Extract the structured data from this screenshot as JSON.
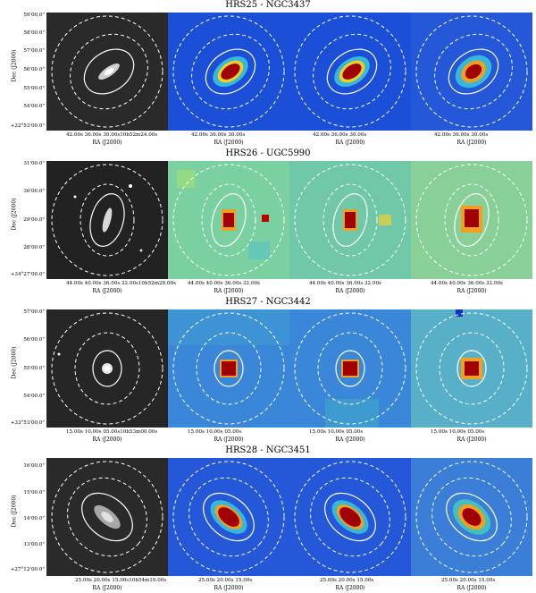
{
  "rows": [
    {
      "title": "HRS25 - NGC3437",
      "yticks": [
        "59'00.0\"",
        "58'00.0\"",
        "57'00.0\"",
        "56'00.0\"",
        "55'00.0\"",
        "54'00.0\"",
        "+22°53'00.0\""
      ],
      "ylabel": "Dec (J2000)",
      "xticks": [
        "42.00s    36.00s    30.00s10h52m24.00s",
        "42.00s    36.00s    30.00s",
        "42.00s    36.00s    30.00s",
        "42.00s    36.00s    30.00s"
      ],
      "xlabel": "RA (J2000)"
    },
    {
      "title": "HRS26 - UGC5990",
      "yticks": [
        "31'00.0\"",
        "30'00.0\"",
        "29'00.0\"",
        "28'00.0\"",
        "+34°27'00.0\""
      ],
      "ylabel": "Dec (J2000)",
      "xticks": [
        "44.00s   40.00s   36.00s   32.00s10h52m28.00s",
        "44.00s  40.00s  36.00s  32.00s",
        "44.00s  40.00s  36.00s  32.00s",
        "44.00s  40.00s  36.00s  32.00s"
      ],
      "xlabel": "RA (J2000)"
    },
    {
      "title": "HRS27 - NGC3442",
      "yticks": [
        "57'00.0\"",
        "56'00.0\"",
        "55'00.0\"",
        "54'00.0\"",
        "+33°53'00.0\""
      ],
      "ylabel": "Dec (J2000)",
      "xticks": [
        "15.00s   10.00s   05.00s10h53m00.00s",
        "15.00s   10.00s   05.00s",
        "15.00s   10.00s   05.00s",
        "15.00s   10.00s   05.00s"
      ],
      "xlabel": "RA (J2000)"
    },
    {
      "title": "HRS28 - NGC3451",
      "yticks": [
        "16'00.0\"",
        "15'00.0\"",
        "14'00.0\"",
        "13'00.0\"",
        "+27°12'00.0\""
      ],
      "ylabel": "Dec (J2000)",
      "xticks": [
        "25.00s   20.00s   15.00s10h54m10.00s",
        "25.00s   20.00s   15.00s",
        "25.00s   20.00s   15.00s",
        "25.00s   20.00s   15.00s"
      ],
      "xlabel": "RA (J2000)"
    }
  ],
  "colors": {
    "optical_bg": "#2a2a2a",
    "map_bg_blue": "#1c4fd8",
    "map_bg_cyan": "#38b8d8",
    "source_red": "#a00000"
  }
}
